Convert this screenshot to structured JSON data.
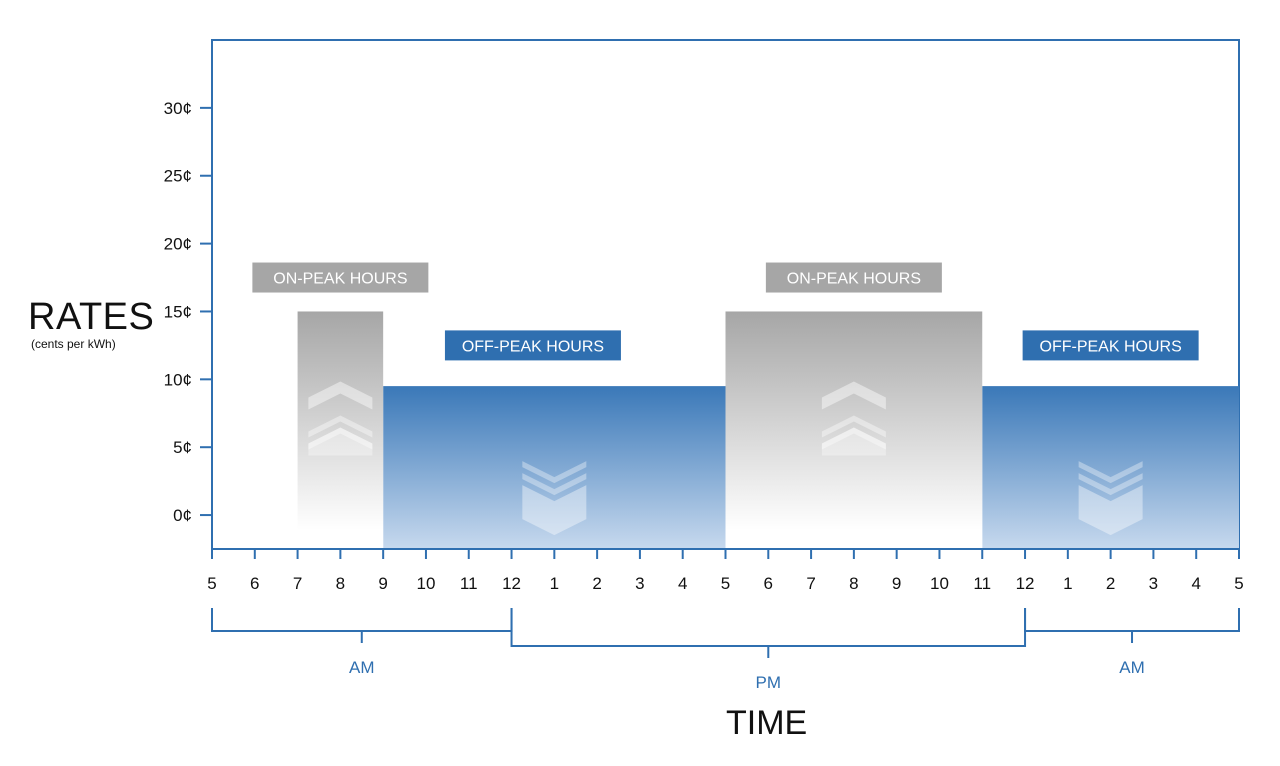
{
  "chart_data": {
    "type": "area",
    "ylabel": "RATES",
    "ylabel_sub": "(cents per kWh)",
    "xlabel": "TIME",
    "y_ticks": [
      "0¢",
      "5¢",
      "10¢",
      "15¢",
      "20¢",
      "25¢",
      "30¢"
    ],
    "y_tick_values": [
      0,
      5,
      10,
      15,
      20,
      25,
      30
    ],
    "ylim": [
      -2.5,
      35
    ],
    "x_ticks": [
      "5",
      "6",
      "7",
      "8",
      "9",
      "10",
      "11",
      "12",
      "1",
      "2",
      "3",
      "4",
      "5",
      "6",
      "7",
      "8",
      "9",
      "10",
      "11",
      "12",
      "1",
      "2",
      "3",
      "4",
      "5"
    ],
    "x_start_hour": 5,
    "x_end_hour": 29,
    "series": [
      {
        "name": "OFF-PEAK HOURS",
        "value": 9.5,
        "color": "#3a78b8",
        "ranges": [
          [
            9,
            17
          ],
          [
            23,
            29
          ]
        ]
      },
      {
        "name": "ON-PEAK HOURS",
        "value": 15,
        "color": "#a6a6a6",
        "ranges": [
          [
            7,
            9
          ],
          [
            17,
            23
          ]
        ]
      }
    ],
    "annotations": [
      {
        "text": "ON-PEAK HOURS",
        "hour": 8,
        "y": 17.5,
        "style": "on"
      },
      {
        "text": "ON-PEAK HOURS",
        "hour": 20,
        "y": 17.5,
        "style": "on"
      },
      {
        "text": "OFF-PEAK HOURS",
        "hour": 12.5,
        "y": 12.5,
        "style": "off"
      },
      {
        "text": "OFF-PEAK HOURS",
        "hour": 26,
        "y": 12.5,
        "style": "off"
      }
    ],
    "period_brackets": [
      {
        "label": "AM",
        "start": 5,
        "end": 12
      },
      {
        "label": "PM",
        "start": 12,
        "end": 24
      },
      {
        "label": "AM",
        "start": 24,
        "end": 29
      }
    ],
    "colors": {
      "axis": "#2f6fb0",
      "text": "#111111",
      "on_peak_label": "#a6a6a6",
      "off_peak_label": "#2f6fb0"
    },
    "grid": false,
    "legend": "none"
  }
}
